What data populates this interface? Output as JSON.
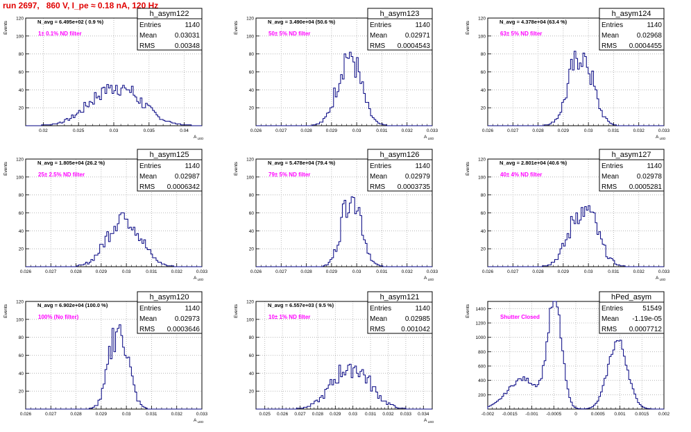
{
  "title": "run 2697,   860 V, I_pe ≈ 0.18 nA, 120 Hz",
  "stats_labels": {
    "entries": "Entries",
    "mean": "Mean",
    "rms": "RMS"
  },
  "colors": {
    "title": "#e00000",
    "annotation": "#ff00ff",
    "histogram": "#000080",
    "grid": "#aaaaaa"
  },
  "chart_data": [
    {
      "type": "histogram",
      "name": "h_asym122",
      "entries": "1140",
      "mean": "0.03031",
      "rms": "0.00348",
      "n_avg": "N_avg = 6.495e+02 ( 0.9 %)",
      "annotation": "1± 0.1% ND filter",
      "ylabel": "Events",
      "xlabel": "A_{LED}",
      "xlim": [
        0.0175,
        0.0425
      ],
      "ylim": [
        0,
        120
      ],
      "xticks": [
        "0.02",
        "0.025",
        "0.03",
        "0.035",
        "0.04"
      ],
      "yticks": [
        "20",
        "40",
        "60",
        "80",
        "100",
        "120"
      ],
      "peak": 47,
      "center": 0.0303,
      "sigma": 0.0035,
      "grid": true
    },
    {
      "type": "histogram",
      "name": "h_asym123",
      "entries": "1140",
      "mean": "0.02971",
      "rms": "0.0004543",
      "n_avg": "N_avg = 3.490e+04 (50.6 %)",
      "annotation": "50± 5% ND filter",
      "ylabel": "Events",
      "xlabel": "A_{LED}",
      "xlim": [
        0.026,
        0.033
      ],
      "ylim": [
        0,
        120
      ],
      "xticks": [
        "0.026",
        "0.027",
        "0.028",
        "0.029",
        "0.03",
        "0.031",
        "0.032",
        "0.033"
      ],
      "yticks": [
        "20",
        "40",
        "60",
        "80",
        "100",
        "120"
      ],
      "peak": 83,
      "center": 0.0297,
      "sigma": 0.00045,
      "grid": true
    },
    {
      "type": "histogram",
      "name": "h_asym124",
      "entries": "1140",
      "mean": "0.02968",
      "rms": "0.0004455",
      "n_avg": "N_avg = 4.378e+04 (63.4 %)",
      "annotation": "63± 5% ND filter",
      "ylabel": "Events",
      "xlabel": "A_{LED}",
      "xlim": [
        0.026,
        0.033
      ],
      "ylim": [
        0,
        120
      ],
      "xticks": [
        "0.026",
        "0.027",
        "0.028",
        "0.029",
        "0.03",
        "0.031",
        "0.032",
        "0.033"
      ],
      "yticks": [
        "20",
        "40",
        "60",
        "80",
        "100",
        "120"
      ],
      "peak": 86,
      "center": 0.0297,
      "sigma": 0.00045,
      "grid": true
    },
    {
      "type": "histogram",
      "name": "h_asym125",
      "entries": "1140",
      "mean": "0.02987",
      "rms": "0.0006342",
      "n_avg": "N_avg = 1.805e+04 (26.2 %)",
      "annotation": "25± 2.5% ND filter",
      "ylabel": "Events",
      "xlabel": "A_{LED}",
      "xlim": [
        0.026,
        0.033
      ],
      "ylim": [
        0,
        120
      ],
      "xticks": [
        "0.026",
        "0.027",
        "0.028",
        "0.029",
        "0.03",
        "0.031",
        "0.032",
        "0.033"
      ],
      "yticks": [
        "20",
        "40",
        "60",
        "80",
        "100",
        "120"
      ],
      "peak": 61,
      "center": 0.0299,
      "sigma": 0.00063,
      "grid": true
    },
    {
      "type": "histogram",
      "name": "h_asym126",
      "entries": "1140",
      "mean": "0.02979",
      "rms": "0.0003735",
      "n_avg": "N_avg = 5.478e+04 (79.4 %)",
      "annotation": "79± 5% ND filter",
      "ylabel": "Events",
      "xlabel": "A_{LED}",
      "xlim": [
        0.026,
        0.033
      ],
      "ylim": [
        0,
        120
      ],
      "xticks": [
        "0.026",
        "0.027",
        "0.028",
        "0.029",
        "0.03",
        "0.031",
        "0.032",
        "0.033"
      ],
      "yticks": [
        "20",
        "40",
        "60",
        "80",
        "100",
        "120"
      ],
      "peak": 90,
      "center": 0.0298,
      "sigma": 0.00037,
      "grid": true
    },
    {
      "type": "histogram",
      "name": "h_asym127",
      "entries": "1140",
      "mean": "0.02978",
      "rms": "0.0005281",
      "n_avg": "N_avg = 2.801e+04 (40.6 %)",
      "annotation": "40± 4% ND filter",
      "ylabel": "Events",
      "xlabel": "A_{LED}",
      "xlim": [
        0.026,
        0.033
      ],
      "ylim": [
        0,
        120
      ],
      "xticks": [
        "0.026",
        "0.027",
        "0.028",
        "0.029",
        "0.03",
        "0.031",
        "0.032",
        "0.033"
      ],
      "yticks": [
        "20",
        "40",
        "60",
        "80",
        "100",
        "120"
      ],
      "peak": 70,
      "center": 0.0298,
      "sigma": 0.00053,
      "grid": true
    },
    {
      "type": "histogram",
      "name": "h_asym120",
      "entries": "1140",
      "mean": "0.02973",
      "rms": "0.0003646",
      "n_avg": "N_avg = 6.902e+04 (100.0 %)",
      "annotation": "100% (No filter)",
      "ylabel": "Events",
      "xlabel": "A_{LED}",
      "xlim": [
        0.026,
        0.033
      ],
      "ylim": [
        0,
        120
      ],
      "xticks": [
        "0.026",
        "0.027",
        "0.028",
        "0.029",
        "0.03",
        "0.031",
        "0.032",
        "0.033"
      ],
      "yticks": [
        "20",
        "40",
        "60",
        "80",
        "100",
        "120"
      ],
      "peak": 100,
      "center": 0.0297,
      "sigma": 0.00036,
      "grid": true
    },
    {
      "type": "histogram",
      "name": "h_asym121",
      "entries": "1140",
      "mean": "0.02985",
      "rms": "0.001042",
      "n_avg": "N_avg = 6.557e+03 ( 9.5 %)",
      "annotation": "10± 1% ND filter",
      "ylabel": "Events",
      "xlabel": "A_{LED}",
      "xlim": [
        0.0245,
        0.0345
      ],
      "ylim": [
        0,
        120
      ],
      "xticks": [
        "0.025",
        "0.026",
        "0.027",
        "0.028",
        "0.029",
        "0.03",
        "0.031",
        "0.032",
        "0.033",
        "0.034"
      ],
      "yticks": [
        "20",
        "40",
        "60",
        "80",
        "100",
        "120"
      ],
      "peak": 50,
      "center": 0.0299,
      "sigma": 0.00104,
      "grid": true
    },
    {
      "type": "histogram",
      "name": "hPed_asym",
      "entries": "51549",
      "mean": "-1.19e-05",
      "rms": "0.0007712",
      "n_avg": "",
      "annotation": "Shutter Closed",
      "ylabel": "Events",
      "xlabel": "",
      "xlim": [
        -0.002,
        0.002
      ],
      "ylim": [
        0,
        1500
      ],
      "xticks": [
        "-0.002",
        "-0.0015",
        "-0.001",
        "-0.0005",
        "0",
        "0.0005",
        "0.001",
        "0.0015",
        "0.002"
      ],
      "yticks": [
        "200",
        "400",
        "600",
        "800",
        "1000",
        "1200",
        "1400"
      ],
      "peaks": [
        {
          "center": -0.00048,
          "sigma": 0.00016,
          "height": 1480
        },
        {
          "center": 0.00095,
          "sigma": 0.00022,
          "height": 950
        },
        {
          "center": -0.0012,
          "sigma": 0.00035,
          "height": 420
        }
      ],
      "grid": true
    }
  ]
}
